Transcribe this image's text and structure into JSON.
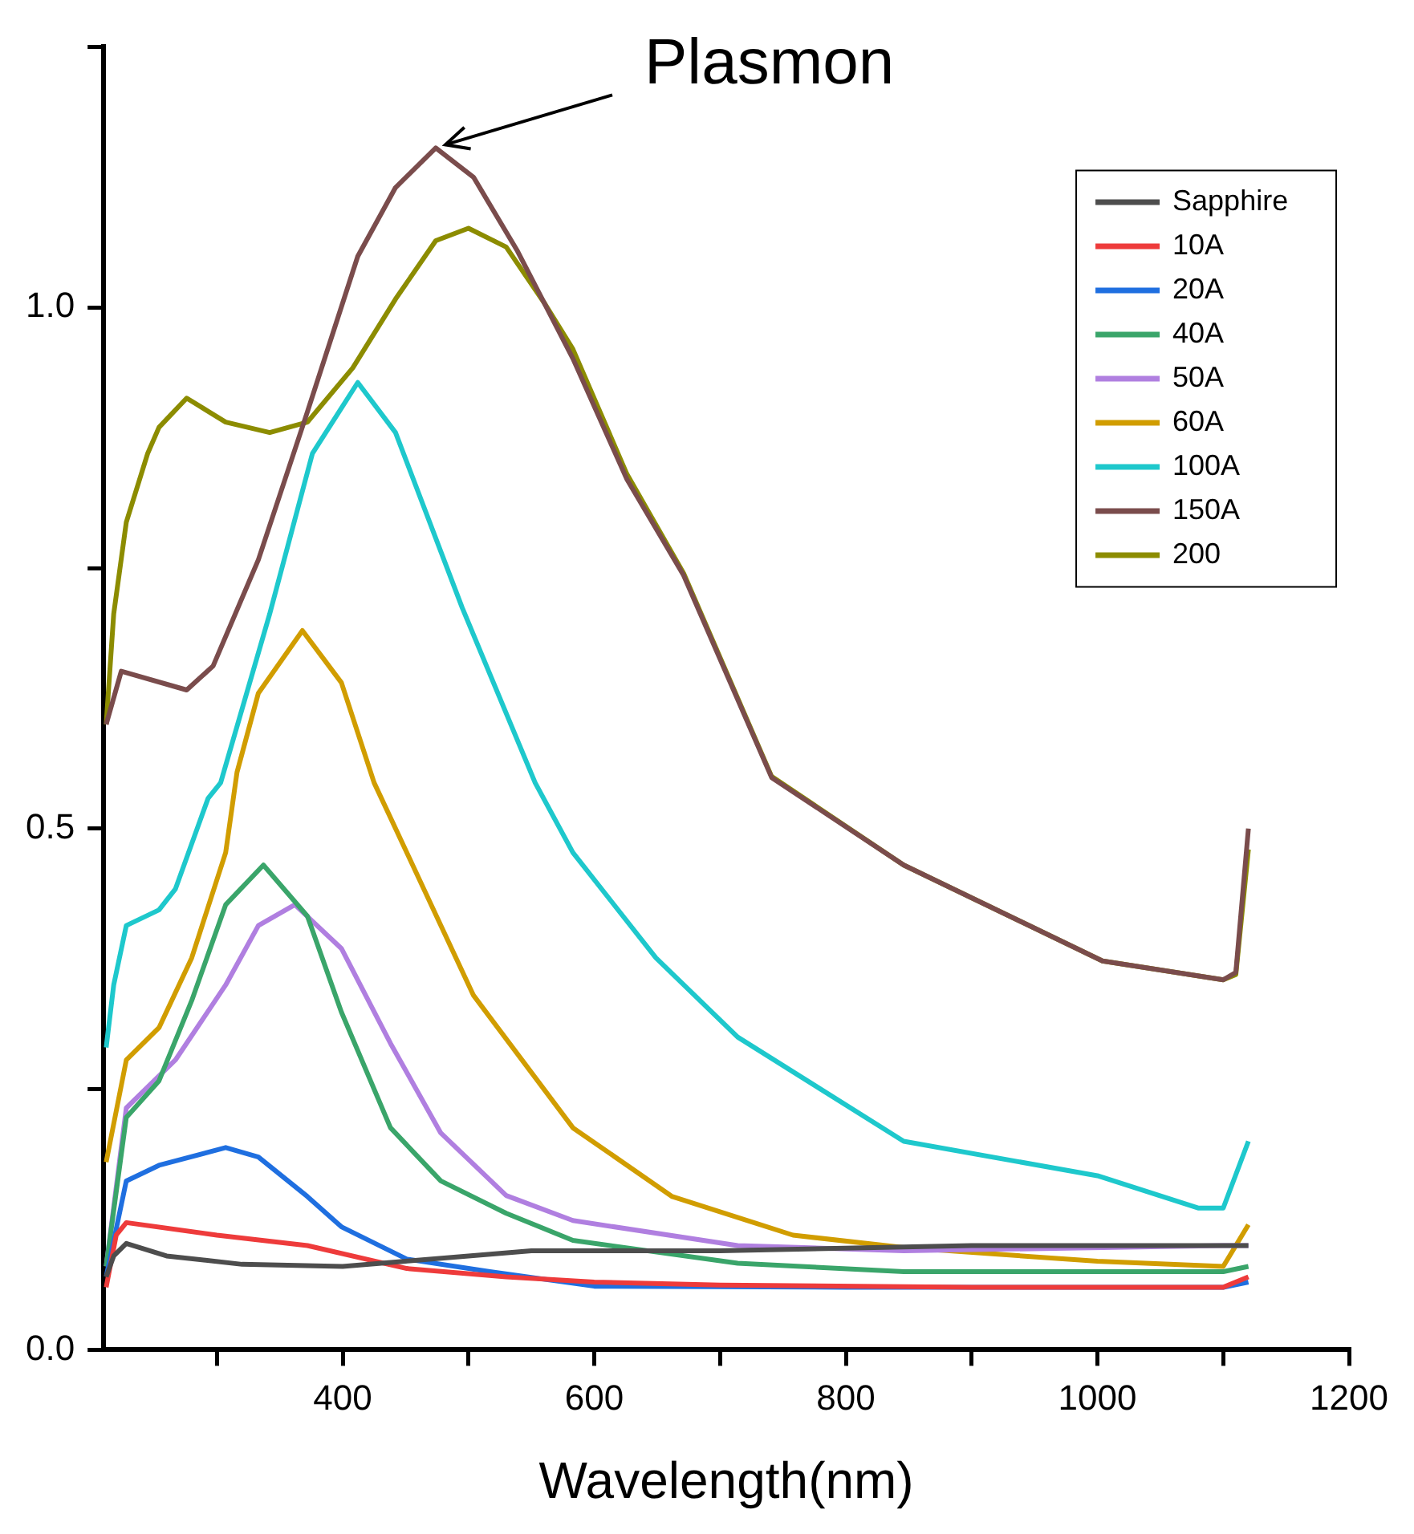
{
  "chart_data": {
    "type": "line",
    "xlabel": "Wavelength(nm)",
    "xlim": [
      210,
      1200
    ],
    "xticks": [
      {
        "value": 300,
        "label": null
      },
      400,
      {
        "value": 500,
        "label": null
      },
      600,
      {
        "value": 700,
        "label": null
      },
      800,
      {
        "value": 900,
        "label": null
      },
      1000,
      {
        "value": 1100,
        "label": null
      },
      1200
    ],
    "ylim": [
      0,
      1.25
    ],
    "yticks": [
      {
        "value": 0,
        "label": "0.0"
      },
      {
        "value": 0.25,
        "label": null
      },
      0.5,
      {
        "value": 0.75,
        "label": null
      },
      {
        "value": 1,
        "label": "1.0"
      },
      {
        "value": 1.25,
        "label": null
      }
    ],
    "grid": false,
    "legend": "top right",
    "marker": "none",
    "line_style": "solid",
    "annotations": [
      {
        "text": "Plasmon",
        "x": 474,
        "y": 1.15
      }
    ],
    "series": [
      {
        "name": "Sapphire",
        "color": "#4d4d4d",
        "x": [
          212,
          218,
          228,
          260,
          320,
          400,
          450,
          500,
          550,
          700,
          900,
          1000,
          1100,
          1120
        ],
        "values": [
          0.07,
          0.09,
          0.102,
          0.09,
          0.082,
          0.08,
          0.085,
          0.09,
          0.095,
          0.095,
          0.1,
          0.1,
          0.1,
          0.1
        ]
      },
      {
        "name": "10A",
        "color": "#ee3b3b",
        "x": [
          212,
          220,
          228,
          300,
          372,
          451,
          530,
          600,
          700,
          900,
          1100,
          1120
        ],
        "values": [
          0.06,
          0.11,
          0.122,
          0.11,
          0.1,
          0.078,
          0.07,
          0.065,
          0.062,
          0.06,
          0.06,
          0.07
        ]
      },
      {
        "name": "20A",
        "color": "#1f6fe0",
        "x": [
          212,
          228,
          254,
          307,
          333,
          372,
          399,
          451,
          517,
          600,
          800,
          1100,
          1120
        ],
        "values": [
          0.07,
          0.162,
          0.177,
          0.194,
          0.185,
          0.147,
          0.118,
          0.087,
          0.075,
          0.061,
          0.06,
          0.06,
          0.065
        ]
      },
      {
        "name": "40A",
        "color": "#3aa56a",
        "x": [
          212,
          228,
          254,
          280,
          307,
          337,
          372,
          399,
          438,
          478,
          530,
          583,
          714,
          846,
          1100,
          1120
        ],
        "values": [
          0.08,
          0.223,
          0.258,
          0.335,
          0.427,
          0.465,
          0.416,
          0.324,
          0.213,
          0.162,
          0.131,
          0.105,
          0.083,
          0.075,
          0.075,
          0.08
        ]
      },
      {
        "name": "50A",
        "color": "#b07fe0",
        "x": [
          212,
          228,
          267,
          307,
          333,
          362,
          399,
          438,
          478,
          530,
          583,
          714,
          846,
          1100,
          1120
        ],
        "values": [
          0.08,
          0.232,
          0.278,
          0.35,
          0.407,
          0.427,
          0.385,
          0.294,
          0.208,
          0.148,
          0.124,
          0.1,
          0.095,
          0.1,
          0.1
        ]
      },
      {
        "name": "60A",
        "color": "#d19d00",
        "x": [
          212,
          228,
          254,
          280,
          307,
          316,
          333,
          368,
          399,
          425,
          451,
          504,
          583,
          662,
          758,
          846,
          1000,
          1100,
          1120
        ],
        "values": [
          0.18,
          0.278,
          0.309,
          0.376,
          0.477,
          0.554,
          0.63,
          0.69,
          0.64,
          0.544,
          0.477,
          0.34,
          0.213,
          0.147,
          0.11,
          0.098,
          0.085,
          0.08,
          0.12
        ]
      },
      {
        "name": "100A",
        "color": "#1ec8cc",
        "x": [
          212,
          218,
          228,
          254,
          267,
          293,
          303,
          342,
          376,
          412,
          442,
          495,
          553,
          583,
          649,
          714,
          846,
          1000,
          1080,
          1100,
          1120
        ],
        "values": [
          0.29,
          0.35,
          0.407,
          0.422,
          0.442,
          0.529,
          0.544,
          0.706,
          0.86,
          0.928,
          0.88,
          0.712,
          0.544,
          0.477,
          0.376,
          0.3,
          0.2,
          0.167,
          0.136,
          0.136,
          0.2
        ]
      },
      {
        "name": "150A",
        "color": "#7a4c4c",
        "x": [
          212,
          224,
          276,
          297,
          333,
          372,
          412,
          442,
          474,
          504,
          539,
          583,
          626,
          671,
          741,
          846,
          925,
          1004,
          1100,
          1110,
          1120
        ],
        "values": [
          0.6,
          0.651,
          0.633,
          0.656,
          0.758,
          0.9,
          1.049,
          1.115,
          1.153,
          1.125,
          1.054,
          0.951,
          0.835,
          0.743,
          0.549,
          0.465,
          0.419,
          0.373,
          0.355,
          0.362,
          0.5
        ]
      },
      {
        "name": "200",
        "color": "#8c8c00",
        "x": [
          212,
          218,
          228,
          245,
          254,
          276,
          307,
          342,
          372,
          408,
          442,
          474,
          500,
          530,
          561,
          583,
          626,
          671,
          741,
          846,
          925,
          1004,
          1100,
          1110,
          1120
        ],
        "values": [
          0.6,
          0.706,
          0.794,
          0.86,
          0.885,
          0.913,
          0.89,
          0.88,
          0.89,
          0.942,
          1.008,
          1.064,
          1.076,
          1.058,
          1.003,
          0.96,
          0.84,
          0.745,
          0.55,
          0.465,
          0.419,
          0.373,
          0.355,
          0.36,
          0.48
        ]
      }
    ]
  }
}
